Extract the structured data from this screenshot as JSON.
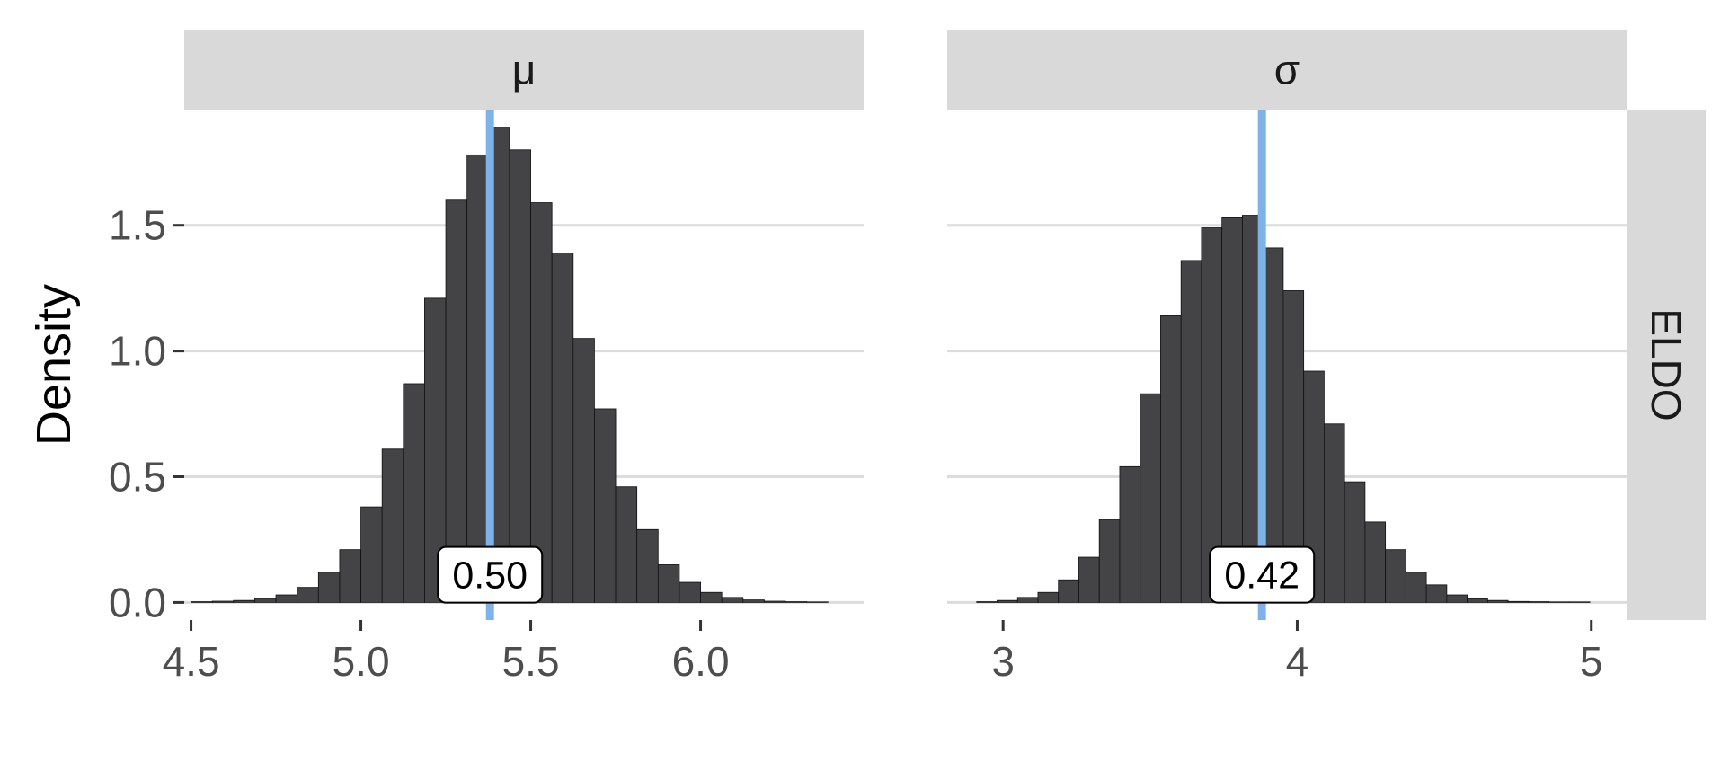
{
  "chart_data": [
    {
      "type": "histogram",
      "facet_title": "μ",
      "row_strip": "ELDO",
      "ylabel": "Density",
      "xlim": [
        4.48,
        6.48
      ],
      "ylim": [
        -0.07,
        1.96
      ],
      "x_ticks": [
        4.5,
        5.0,
        5.5,
        6.0
      ],
      "x_tick_labels": [
        "4.5",
        "5.0",
        "5.5",
        "6.0"
      ],
      "y_ticks": [
        0.0,
        0.5,
        1.0,
        1.5
      ],
      "y_tick_labels": [
        "0.0",
        "0.5",
        "1.0",
        "1.5"
      ],
      "bin_width": 0.0625,
      "bin_start": 4.5,
      "values": [
        0.003,
        0.005,
        0.008,
        0.016,
        0.03,
        0.06,
        0.12,
        0.21,
        0.38,
        0.61,
        0.87,
        1.21,
        1.6,
        1.78,
        1.89,
        1.8,
        1.59,
        1.39,
        1.05,
        0.77,
        0.46,
        0.29,
        0.15,
        0.08,
        0.04,
        0.02,
        0.01,
        0.005,
        0.003,
        0.002
      ],
      "reference_line_x": 5.38,
      "reference_line_color": "#7db3e8",
      "annotation": "0.50",
      "annotation_x": 5.38,
      "annotation_y": 0.11,
      "grid": true
    },
    {
      "type": "histogram",
      "facet_title": "σ",
      "row_strip": "ELDO",
      "ylabel": "Density",
      "xlim": [
        2.81,
        5.12
      ],
      "ylim": [
        -0.07,
        1.96
      ],
      "x_ticks": [
        3,
        4,
        5
      ],
      "x_tick_labels": [
        "3",
        "4",
        "5"
      ],
      "y_ticks": [
        0.0,
        0.5,
        1.0,
        1.5
      ],
      "y_tick_labels": [
        "0.0",
        "0.5",
        "1.0",
        "1.5"
      ],
      "bin_width": 0.0695,
      "bin_start": 2.91,
      "values": [
        0.003,
        0.008,
        0.02,
        0.04,
        0.09,
        0.18,
        0.33,
        0.54,
        0.83,
        1.14,
        1.36,
        1.49,
        1.53,
        1.54,
        1.41,
        1.24,
        0.92,
        0.71,
        0.48,
        0.32,
        0.21,
        0.12,
        0.07,
        0.03,
        0.015,
        0.008,
        0.004,
        0.003,
        0.002,
        0.002
      ],
      "reference_line_x": 3.88,
      "reference_line_color": "#7db3e8",
      "annotation": "0.42",
      "annotation_x": 3.88,
      "annotation_y": 0.11,
      "grid": true
    }
  ],
  "colors": {
    "bar_fill": "#444446",
    "bar_stroke": "#111111",
    "strip_bg": "#d9d9d9",
    "grid": "#dcdcdc",
    "tick_text": "#4d4d4d"
  }
}
